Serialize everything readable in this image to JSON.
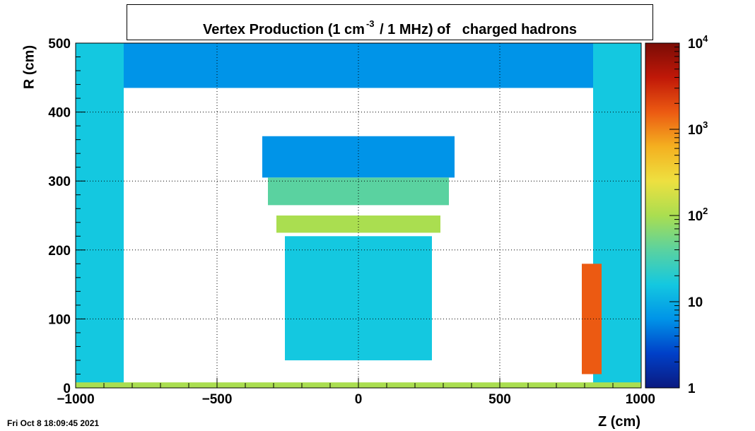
{
  "chart_data": {
    "type": "heatmap",
    "title_prefix": "Vertex Production (1 cm",
    "title_exponent": "-3",
    "title_suffix": " / 1 MHz) of   charged hadrons",
    "xlabel": "Z (cm)",
    "ylabel": "R (cm)",
    "xlim": [
      -1000,
      1000
    ],
    "ylim": [
      0,
      500
    ],
    "x_ticks": [
      {
        "value": -1000,
        "label": "−1000"
      },
      {
        "value": -500,
        "label": "−500"
      },
      {
        "value": 0,
        "label": "0"
      },
      {
        "value": 500,
        "label": "500"
      },
      {
        "value": 1000,
        "label": "1000"
      }
    ],
    "y_ticks": [
      {
        "value": 0,
        "label": "0"
      },
      {
        "value": 100,
        "label": "100"
      },
      {
        "value": 200,
        "label": "200"
      },
      {
        "value": 300,
        "label": "300"
      },
      {
        "value": 400,
        "label": "400"
      },
      {
        "value": 500,
        "label": "500"
      }
    ],
    "grid": true,
    "z_scale": "log",
    "z_range": [
      1,
      10000
    ],
    "colorbar_labels": [
      {
        "value": 1,
        "base": "1",
        "exp": ""
      },
      {
        "value": 10,
        "base": "10",
        "exp": ""
      },
      {
        "value": 100,
        "base": "10",
        "exp": "2"
      },
      {
        "value": 1000,
        "base": "10",
        "exp": "3"
      },
      {
        "value": 10000,
        "base": "10",
        "exp": "4"
      }
    ],
    "colormap": [
      "#0b1a80",
      "#0040c8",
      "#0094e8",
      "#14c8e0",
      "#5ad2a0",
      "#aade50",
      "#eee040",
      "#f4b020",
      "#ec5a12",
      "#c01808",
      "#7a0c06"
    ],
    "regions": [
      {
        "name": "barrel-outer-left",
        "z": [
          -1000,
          -830
        ],
        "r": [
          0,
          500
        ],
        "intensity": 20
      },
      {
        "name": "barrel-outer-right",
        "z": [
          830,
          1000
        ],
        "r": [
          0,
          500
        ],
        "intensity": 20
      },
      {
        "name": "top-band",
        "z": [
          -830,
          830
        ],
        "r": [
          435,
          500
        ],
        "intensity": 6
      },
      {
        "name": "upper-cap",
        "z": [
          -340,
          340
        ],
        "r": [
          305,
          365
        ],
        "intensity": 4
      },
      {
        "name": "mid-layers",
        "z": [
          -320,
          320
        ],
        "r": [
          265,
          305
        ],
        "intensity": 40
      },
      {
        "name": "calo-wedge",
        "z": [
          -290,
          290
        ],
        "r": [
          225,
          250
        ],
        "intensity": 120
      },
      {
        "name": "inner-frame",
        "z": [
          -260,
          260
        ],
        "r": [
          40,
          220
        ],
        "intensity": 15
      },
      {
        "name": "forward-right",
        "z": [
          790,
          860
        ],
        "r": [
          20,
          180
        ],
        "intensity": 2500
      },
      {
        "name": "beamline",
        "z": [
          -1000,
          1000
        ],
        "r": [
          0,
          8
        ],
        "intensity": 150
      }
    ]
  },
  "footer": {
    "timestamp": "Fri Oct  8 18:09:45 2021"
  }
}
